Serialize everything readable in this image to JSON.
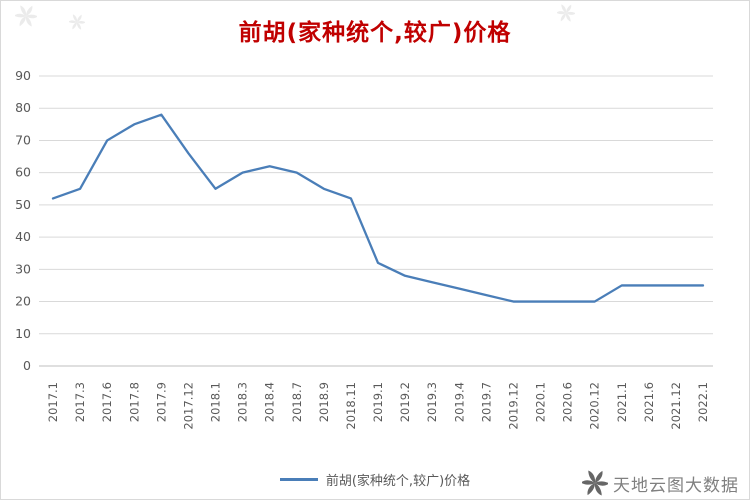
{
  "title": "前胡(家种统个,较广)价格",
  "legend": {
    "label": "前胡(家种统个,较广)价格"
  },
  "watermark": {
    "text": "天地云图大数据"
  },
  "colors": {
    "line": "#4a7eb8",
    "title": "#c00000",
    "axis_text": "#595959",
    "grid": "#d9d9d9",
    "axis_line": "#bfbfbf",
    "watermark_text": "#808080",
    "watermark_logo": "#666666"
  },
  "chart_data": {
    "type": "line",
    "title": "前胡(家种统个,较广)价格",
    "series_name": "前胡(家种统个,较广)价格",
    "categories": [
      "2017.1",
      "2017.3",
      "2017.6",
      "2017.8",
      "2017.9",
      "2017.12",
      "2018.1",
      "2018.3",
      "2018.4",
      "2018.7",
      "2018.9",
      "2018.11",
      "2019.1",
      "2019.2",
      "2019.3",
      "2019.4",
      "2019.7",
      "2019.12",
      "2020.1",
      "2020.6",
      "2020.12",
      "2021.1",
      "2021.6",
      "2021.12",
      "2022.1"
    ],
    "values": [
      52,
      55,
      70,
      75,
      78,
      66,
      55,
      60,
      62,
      60,
      55,
      52,
      32,
      28,
      26,
      24,
      22,
      20,
      20,
      20,
      20,
      25,
      25,
      25,
      25
    ],
    "ylabel": "",
    "xlabel": "",
    "ylim": [
      0,
      90
    ],
    "ytick_step": 10,
    "grid": "horizontal",
    "legend_position": "bottom"
  }
}
